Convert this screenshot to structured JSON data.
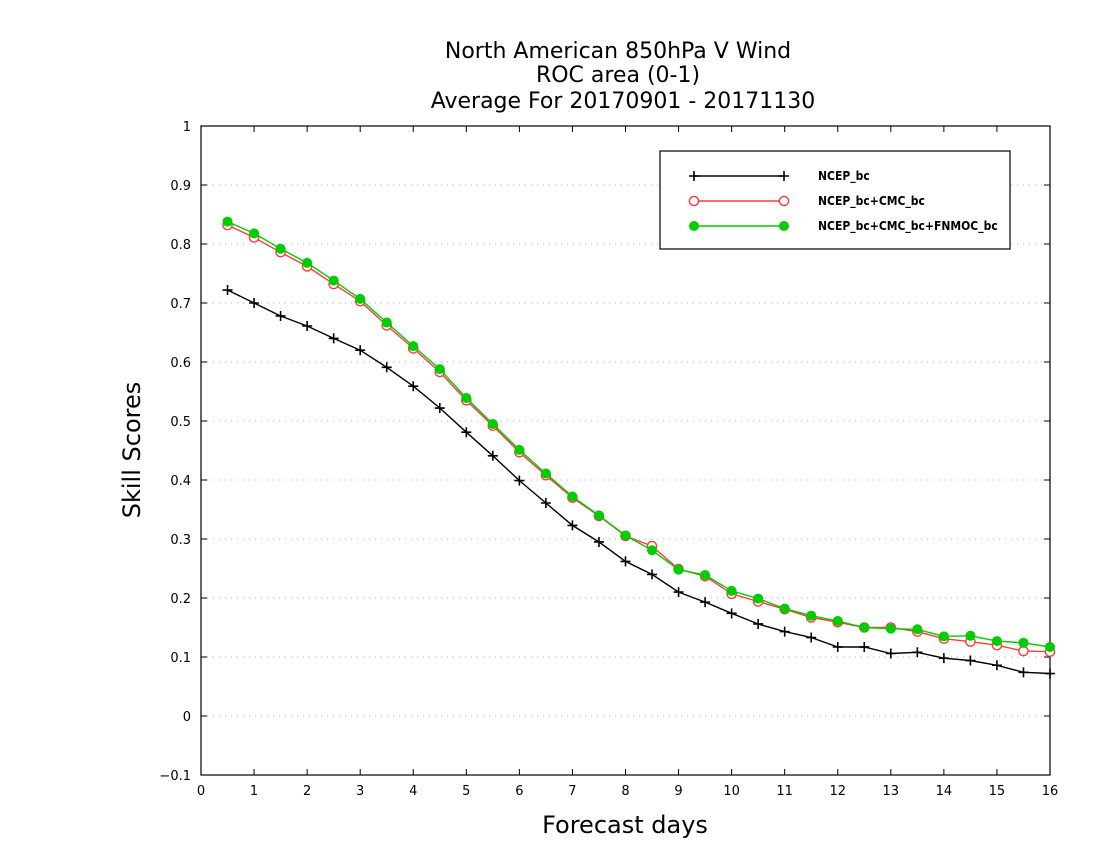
{
  "chart_data": {
    "type": "line",
    "title": [
      "North American 850hPa V Wind",
      "ROC area (0-1)",
      "Average For 20170901 - 20171130"
    ],
    "xlabel": "Forecast days",
    "ylabel": "Skill Scores",
    "xlim": [
      0,
      16
    ],
    "ylim": [
      -0.1,
      1
    ],
    "x_ticks": [
      "0",
      "1",
      "2",
      "3",
      "4",
      "5",
      "6",
      "7",
      "8",
      "9",
      "10",
      "11",
      "12",
      "13",
      "14",
      "15",
      "16"
    ],
    "y_ticks": [
      "−0.1",
      "0",
      "0.1",
      "0.2",
      "0.3",
      "0.4",
      "0.5",
      "0.6",
      "0.7",
      "0.8",
      "0.9",
      "1"
    ],
    "y_tick_values": [
      -0.1,
      0,
      0.1,
      0.2,
      0.3,
      0.4,
      0.5,
      0.6,
      0.7,
      0.8,
      0.9,
      1
    ],
    "grid": true,
    "legend_position": "top-right",
    "x": [
      0.5,
      1,
      1.5,
      2,
      2.5,
      3,
      3.5,
      4,
      4.5,
      5,
      5.5,
      6,
      6.5,
      7,
      7.5,
      8,
      8.5,
      9,
      9.5,
      10,
      10.5,
      11,
      11.5,
      12,
      12.5,
      13,
      13.5,
      14,
      14.5,
      15,
      15.5,
      16
    ],
    "series": [
      {
        "name": "NCEP_bc",
        "color": "#000000",
        "marker": "plus",
        "values": [
          0.722,
          0.7,
          0.678,
          0.661,
          0.64,
          0.62,
          0.591,
          0.559,
          0.522,
          0.481,
          0.441,
          0.399,
          0.361,
          0.323,
          0.295,
          0.262,
          0.24,
          0.21,
          0.193,
          0.174,
          0.156,
          0.143,
          0.133,
          0.117,
          0.117,
          0.106,
          0.108,
          0.098,
          0.094,
          0.086,
          0.074,
          0.072
        ]
      },
      {
        "name": "NCEP_bc+CMC_bc",
        "color": "#ff3b3b",
        "marker": "open-circle",
        "values": [
          0.832,
          0.811,
          0.786,
          0.762,
          0.732,
          0.703,
          0.662,
          0.623,
          0.583,
          0.535,
          0.492,
          0.447,
          0.408,
          0.37,
          0.339,
          0.305,
          0.288,
          0.249,
          0.237,
          0.207,
          0.194,
          0.181,
          0.167,
          0.159,
          0.15,
          0.15,
          0.143,
          0.131,
          0.126,
          0.12,
          0.11,
          0.109
        ]
      },
      {
        "name": "NCEP_bc+CMC_bc+FNMOC_bc",
        "color": "#00cc00",
        "marker": "filled-circle",
        "values": [
          0.838,
          0.818,
          0.792,
          0.768,
          0.738,
          0.707,
          0.667,
          0.627,
          0.588,
          0.539,
          0.495,
          0.451,
          0.411,
          0.372,
          0.34,
          0.306,
          0.281,
          0.248,
          0.239,
          0.212,
          0.199,
          0.182,
          0.17,
          0.161,
          0.15,
          0.148,
          0.147,
          0.135,
          0.136,
          0.127,
          0.124,
          0.117
        ]
      }
    ]
  }
}
